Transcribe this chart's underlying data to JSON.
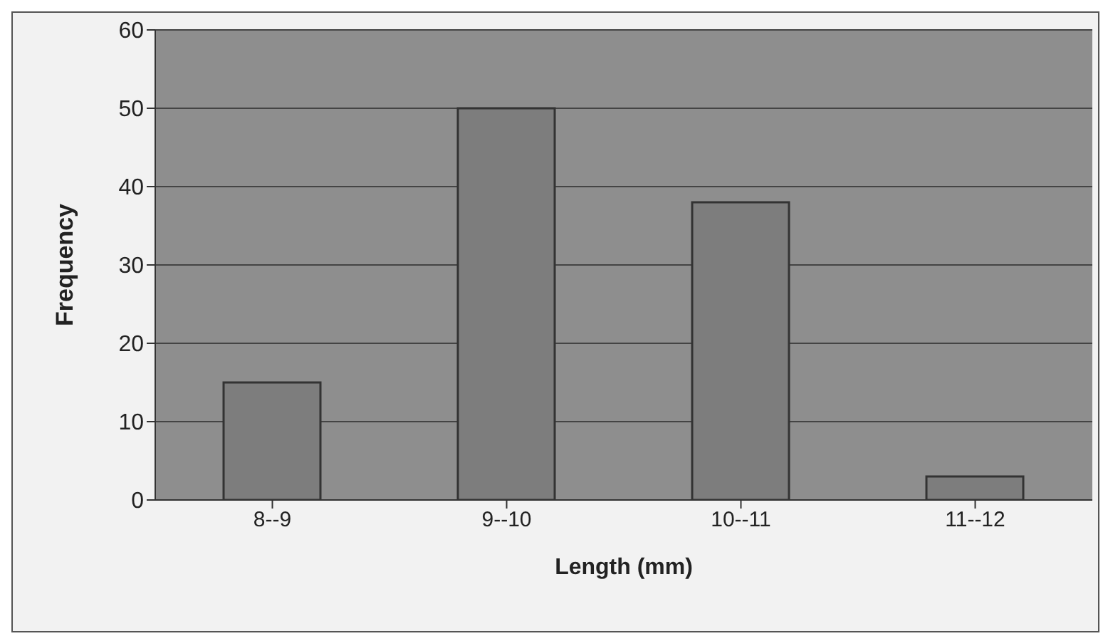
{
  "chart_data": {
    "type": "bar",
    "xlabel": "Length (mm)",
    "ylabel": "Frequency",
    "categories": [
      "8--9",
      "9--10",
      "10--11",
      "11--12"
    ],
    "values": [
      15,
      50,
      38,
      3
    ],
    "color": "#7d7d7d",
    "ylim": [
      0,
      60
    ],
    "yticks": [
      0,
      10,
      20,
      30,
      40,
      50,
      60
    ],
    "grid": "y"
  }
}
